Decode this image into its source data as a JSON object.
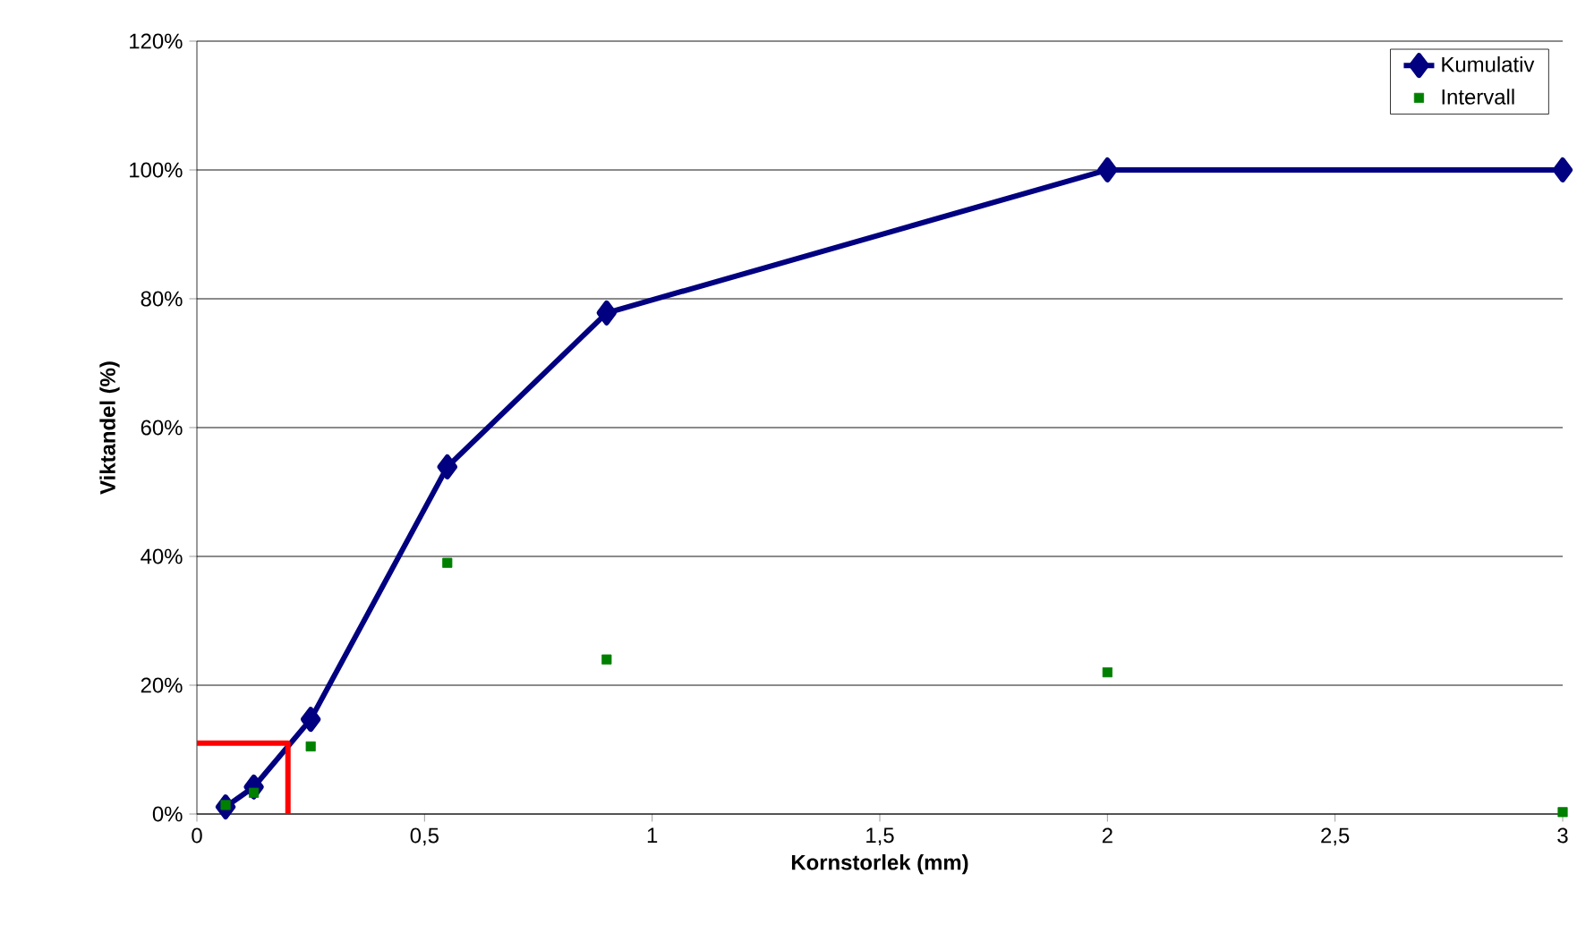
{
  "chart_data": {
    "type": "line",
    "xlabel": "Kornstorlek (mm)",
    "ylabel": "Viktandel (%)",
    "xlim": [
      0,
      3
    ],
    "ylim": [
      0,
      120
    ],
    "xticks": [
      0,
      {
        "value": 0.5,
        "label": "0,5"
      },
      1,
      {
        "value": 1.5,
        "label": "1,5"
      },
      2,
      {
        "value": 2.5,
        "label": "2,5"
      },
      3
    ],
    "yticks": [
      {
        "value": 0,
        "label": "0%"
      },
      {
        "value": 20,
        "label": "20%"
      },
      {
        "value": 40,
        "label": "40%"
      },
      {
        "value": 60,
        "label": "60%"
      },
      {
        "value": 80,
        "label": "80%"
      },
      {
        "value": 100,
        "label": "100%"
      },
      {
        "value": 120,
        "label": "120%"
      }
    ],
    "grid": "y",
    "legend": "top right",
    "series": [
      {
        "name": "Kumulativ",
        "color": "#000080",
        "marker": "diamond",
        "x": [
          0.063,
          0.125,
          0.25,
          0.55,
          0.9,
          2,
          3
        ],
        "values": [
          1.1,
          4.2,
          14.7,
          53.9,
          77.8,
          100,
          100
        ]
      },
      {
        "name": "Intervall",
        "type": "scatter",
        "color": "#008000",
        "marker": "square",
        "x": [
          0.063,
          0.125,
          0.25,
          0.55,
          0.9,
          2,
          3
        ],
        "values": [
          1.4,
          3.3,
          10.5,
          39,
          24,
          22,
          0.3
        ]
      },
      {
        "color": "#ff0000",
        "marker": "none",
        "x": [
          0,
          0.2,
          0.2
        ],
        "values": [
          11,
          11,
          0
        ]
      }
    ]
  }
}
